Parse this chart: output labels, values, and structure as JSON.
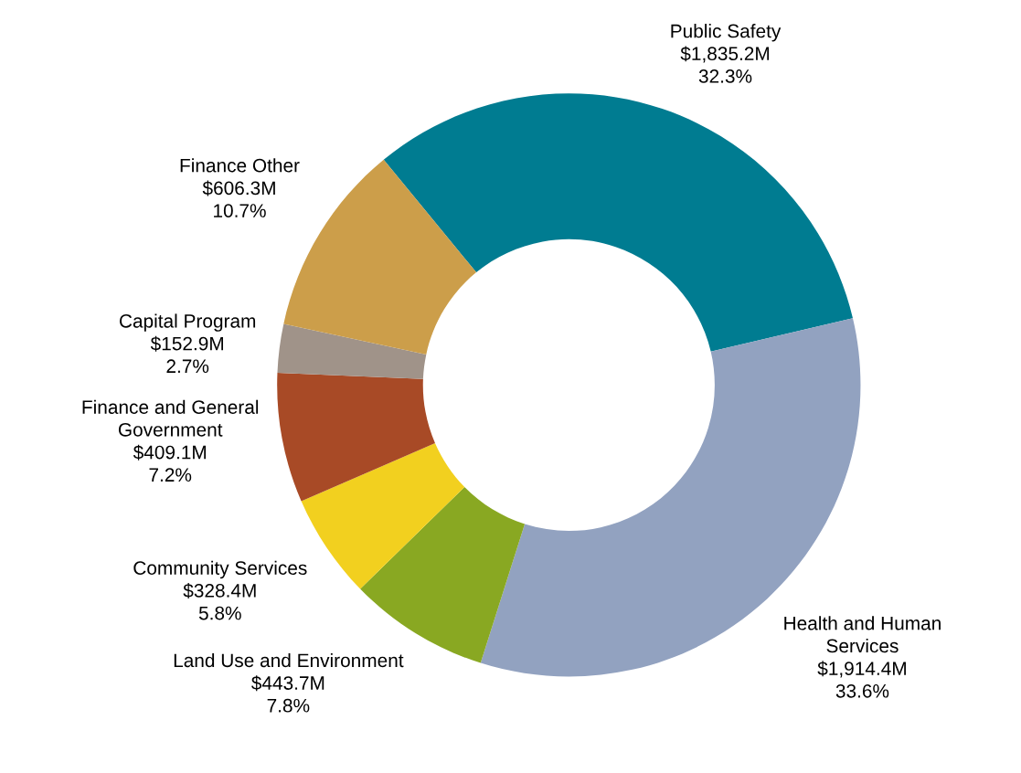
{
  "chart_data": {
    "type": "donut",
    "categories": [
      "Public Safety",
      "Health and Human\nServices",
      "Land Use and Environment",
      "Community Services",
      "Finance and General\nGovernment",
      "Capital Program",
      "Finance Other"
    ],
    "values": [
      32.3,
      33.6,
      7.8,
      5.8,
      7.2,
      2.7,
      10.7
    ],
    "value_labels": [
      "$1,835.2M\n32.3%",
      "$1,914.4M\n33.6%",
      "$443.7M\n7.8%",
      "$328.4M\n5.8%",
      "$409.1M\n7.2%",
      "$152.9M\n2.7%",
      "$606.3M\n10.7%"
    ],
    "colors": [
      "#007c91",
      "#92a2c0",
      "#89a822",
      "#f2d01f",
      "#a84a26",
      "#a09389",
      "#cc9e4a"
    ],
    "legend": false
  }
}
